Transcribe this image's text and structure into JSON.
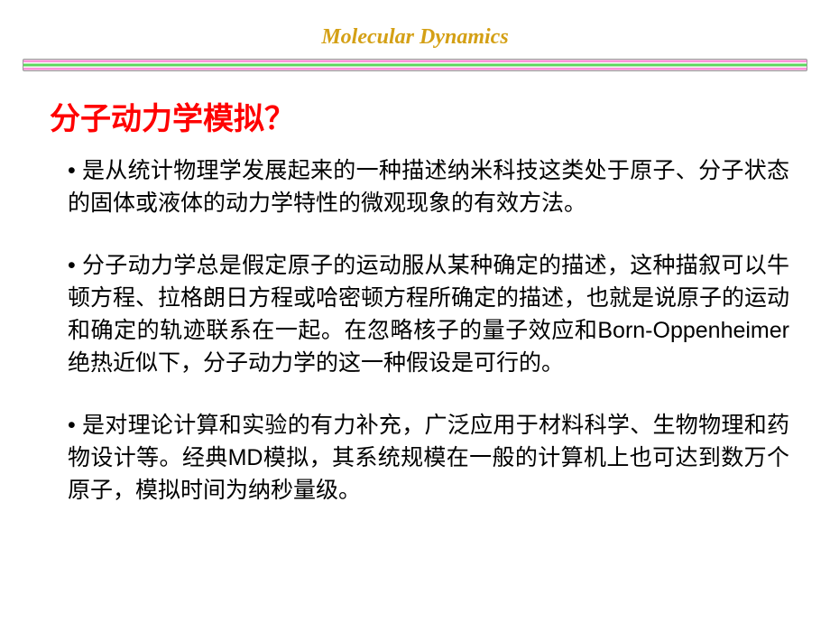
{
  "header": {
    "title": "Molecular Dynamics"
  },
  "heading": "分子动力学模拟？",
  "paragraphs": {
    "p1": "• 是从统计物理学发展起来的一种描述纳米科技这类处于原子、分子状态的固体或液体的动力学特性的微观现象的有效方法。",
    "p2": "• 分子动力学总是假定原子的运动服从某种确定的描述，这种描叙可以牛顿方程、拉格朗日方程或哈密顿方程所确定的描述，也就是说原子的运动和确定的轨迹联系在一起。在忽略核子的量子效应和Born-Oppenheimer绝热近似下，分子动力学的这一种假设是可行的。",
    "p3": "• 是对理论计算和实验的有力补充，广泛应用于材料科学、生物物理和药物设计等。经典MD模拟，其系统规模在一般的计算机上也可达到数万个原子，模拟时间为纳秒量级。"
  },
  "colors": {
    "heading_color": "#ff0000",
    "title_color": "#d4a015",
    "text_color": "#000000",
    "background": "#ffffff"
  }
}
